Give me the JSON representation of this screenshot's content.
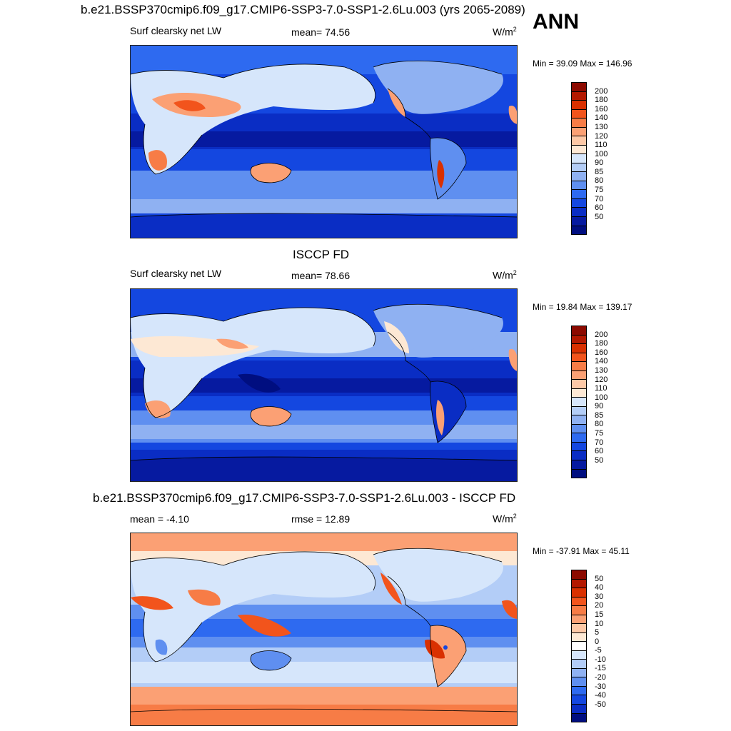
{
  "season": "ANN",
  "panels": [
    {
      "title": "b.e21.BSSP370cmip6.f09_g17.CMIP6-SSP3-7.0-SSP1-2.6Lu.003 (yrs 2065-2089)",
      "left_label": "Surf clearsky net LW",
      "center_label": "mean=  74.56",
      "units": "W/m",
      "units_sup": "2",
      "minmax": "Min =  39.09 Max = 146.96",
      "colorbar": {
        "labels": [
          "200",
          "180",
          "160",
          "140",
          "130",
          "120",
          "110",
          "100",
          "90",
          "85",
          "80",
          "75",
          "70",
          "60",
          "50"
        ],
        "colors": [
          "#8c0a00",
          "#b31800",
          "#d93000",
          "#f2541c",
          "#f77c46",
          "#fba074",
          "#fdc8a6",
          "#fde8d4",
          "#d6e6fb",
          "#b3cdf7",
          "#8fb1f2",
          "#5f8ff0",
          "#2e6af0",
          "#1447e0",
          "#0a2dc4",
          "#061aa0",
          "#000e80"
        ]
      }
    },
    {
      "title": "ISCCP FD",
      "left_label": "Surf clearsky net LW",
      "center_label": "mean=  78.66",
      "units": "W/m",
      "units_sup": "2",
      "minmax": "Min =  19.84 Max = 139.17",
      "colorbar": {
        "labels": [
          "200",
          "180",
          "160",
          "140",
          "130",
          "120",
          "110",
          "100",
          "90",
          "85",
          "80",
          "75",
          "70",
          "60",
          "50"
        ],
        "colors": [
          "#8c0a00",
          "#b31800",
          "#d93000",
          "#f2541c",
          "#f77c46",
          "#fba074",
          "#fdc8a6",
          "#fde8d4",
          "#d6e6fb",
          "#b3cdf7",
          "#8fb1f2",
          "#5f8ff0",
          "#2e6af0",
          "#1447e0",
          "#0a2dc4",
          "#061aa0",
          "#000e80"
        ]
      }
    },
    {
      "title": "b.e21.BSSP370cmip6.f09_g17.CMIP6-SSP3-7.0-SSP1-2.6Lu.003 - ISCCP FD",
      "left_label": "mean =  -4.10",
      "center_label": "rmse =  12.89",
      "units": "W/m",
      "units_sup": "2",
      "minmax": "Min = -37.91 Max =  45.11",
      "colorbar": {
        "labels": [
          "50",
          "40",
          "30",
          "20",
          "15",
          "10",
          "5",
          "0",
          "-5",
          "-10",
          "-15",
          "-20",
          "-30",
          "-40",
          "-50"
        ],
        "colors": [
          "#8c0a00",
          "#b31800",
          "#d93000",
          "#f2541c",
          "#f77c46",
          "#fba074",
          "#fdc8a6",
          "#fde8d4",
          "#ffffff",
          "#d6e6fb",
          "#b3cdf7",
          "#8fb1f2",
          "#5f8ff0",
          "#2e6af0",
          "#1447e0",
          "#0a2dc4",
          "#000e80"
        ]
      }
    }
  ]
}
